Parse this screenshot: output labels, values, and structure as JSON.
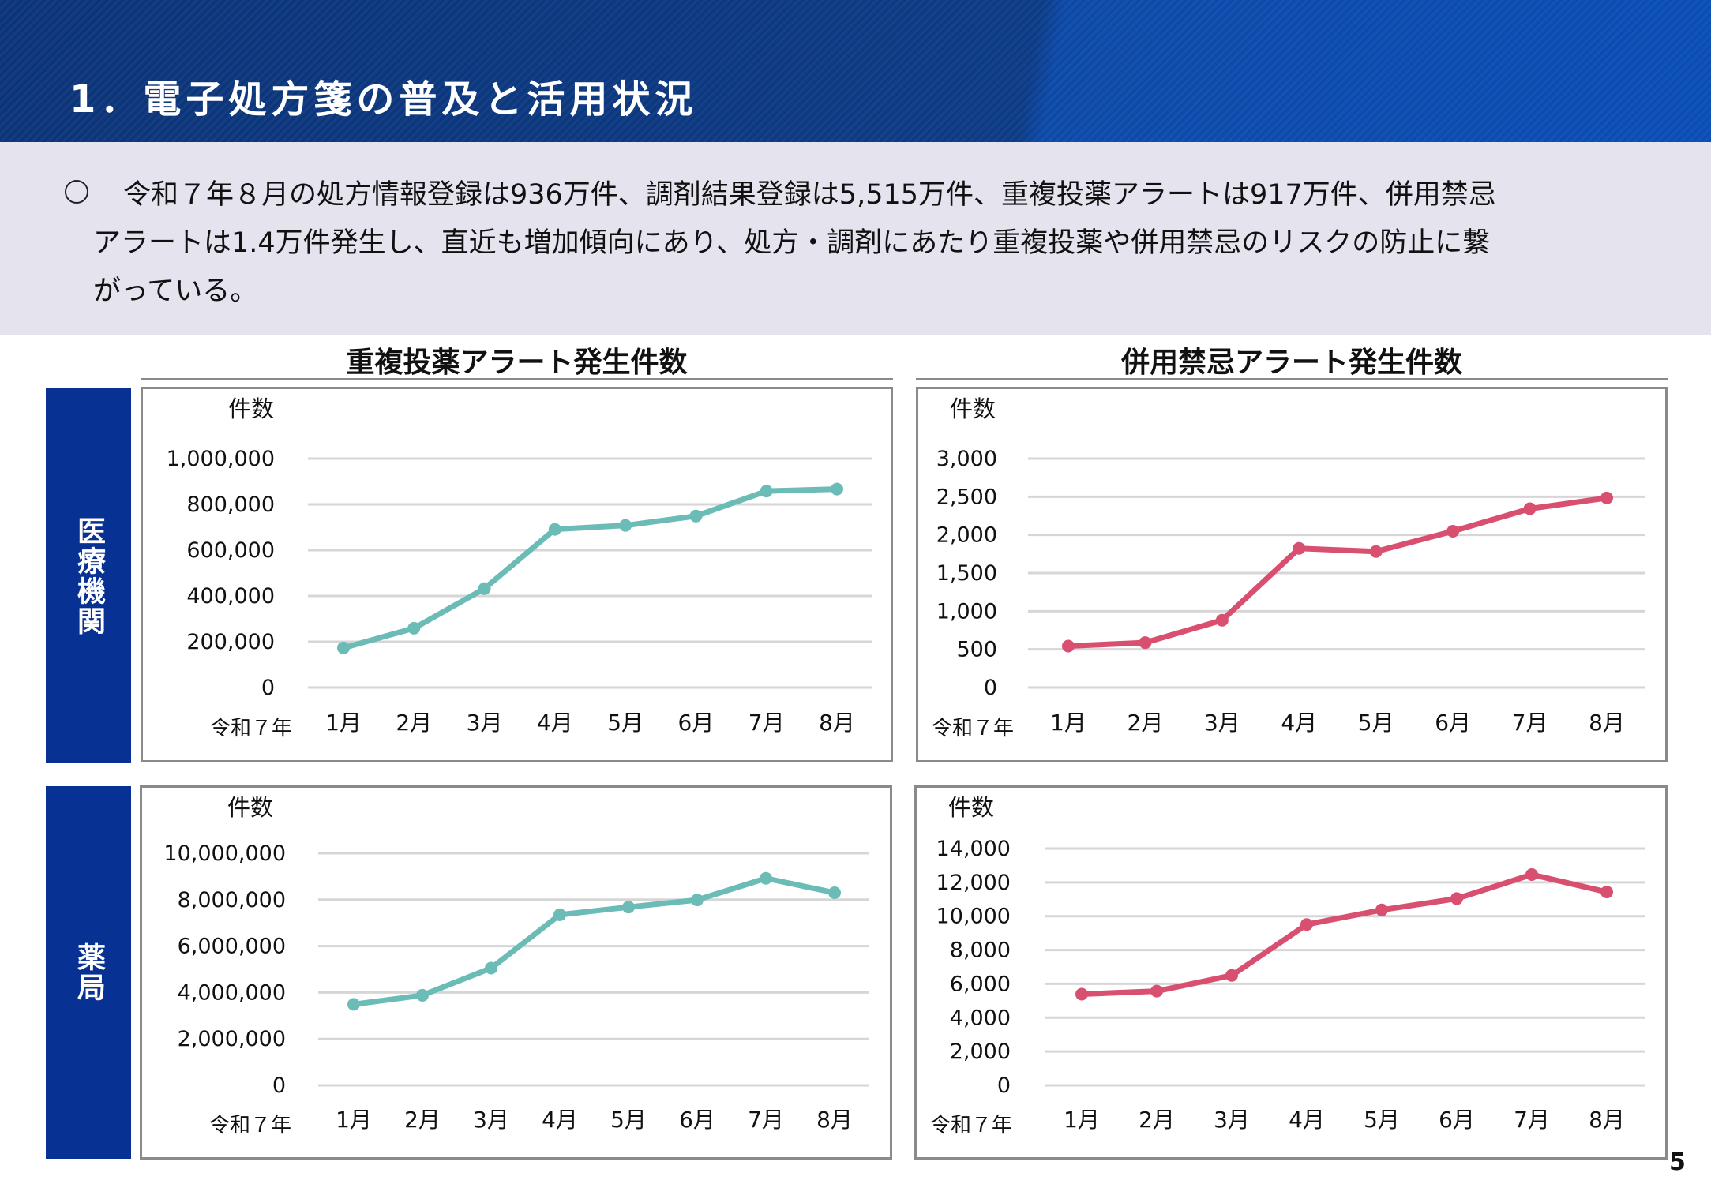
{
  "header": {
    "title": "1．電子処方箋の普及と活用状況"
  },
  "summary": {
    "bullet_icon": "circle-bullet",
    "lines": [
      "令和７年８月の処方情報登録は936万件、調剤結果登録は5,515万件、重複投薬アラートは917万件、併用禁忌",
      "アラートは1.4万件発生し、直近も増加傾向にあり、処方・調剤にあたり重複投薬や併用禁忌のリスクの防止に繋",
      "がっている。"
    ]
  },
  "columns": {
    "left_title": "重複投薬アラート発生件数",
    "right_title": "併用禁忌アラート発生件数"
  },
  "rows": {
    "top_label": "医療機関",
    "bottom_label": "薬局"
  },
  "page_number": "5",
  "colors": {
    "teal": "#6bbcb7",
    "pink": "#d94f70",
    "side_label": "#073192"
  },
  "chart_data": [
    {
      "type": "line",
      "title": "重複投薬アラート発生件数",
      "row": "医療機関",
      "ylabel": "件数",
      "xlabel": "令和７年",
      "categories": [
        "1月",
        "2月",
        "3月",
        "4月",
        "5月",
        "6月",
        "7月",
        "8月"
      ],
      "values": [
        173000,
        259000,
        432000,
        691000,
        708000,
        749000,
        858000,
        867000
      ],
      "ylim": [
        0,
        1000000
      ],
      "yticks": [
        "0",
        "200,000",
        "400,000",
        "600,000",
        "800,000",
        "1,000,000"
      ],
      "color": "#6bbcb7",
      "grid": true
    },
    {
      "type": "line",
      "title": "併用禁忌アラート発生件数",
      "row": "医療機関",
      "ylabel": "件数",
      "xlabel": "令和７年",
      "categories": [
        "1月",
        "2月",
        "3月",
        "4月",
        "5月",
        "6月",
        "7月",
        "8月"
      ],
      "values": [
        543,
        588,
        882,
        1823,
        1782,
        2048,
        2343,
        2484
      ],
      "ylim": [
        0,
        3000
      ],
      "yticks": [
        "0",
        "500",
        "1,000",
        "1,500",
        "2,000",
        "2,500",
        "3,000"
      ],
      "color": "#d94f70",
      "grid": true
    },
    {
      "type": "line",
      "title": "重複投薬アラート発生件数",
      "row": "薬局",
      "ylabel": "件数",
      "xlabel": "令和７年",
      "categories": [
        "1月",
        "2月",
        "3月",
        "4月",
        "5月",
        "6月",
        "7月",
        "8月"
      ],
      "values": [
        3490000,
        3880000,
        5050000,
        7350000,
        7680000,
        7990000,
        8920000,
        8300000
      ],
      "ylim": [
        0,
        10000000
      ],
      "yticks": [
        "0",
        "2,000,000",
        "4,000,000",
        "6,000,000",
        "8,000,000",
        "10,000,000"
      ],
      "color": "#6bbcb7",
      "grid": true
    },
    {
      "type": "line",
      "title": "併用禁忌アラート発生件数",
      "row": "薬局",
      "ylabel": "件数",
      "xlabel": "令和７年",
      "categories": [
        "1月",
        "2月",
        "3月",
        "4月",
        "5月",
        "6月",
        "7月",
        "8月"
      ],
      "values": [
        5390,
        5570,
        6500,
        9510,
        10370,
        11040,
        12460,
        11430
      ],
      "ylim": [
        0,
        14000
      ],
      "yticks": [
        "0",
        "2,000",
        "4,000",
        "6,000",
        "8,000",
        "10,000",
        "12,000",
        "14,000"
      ],
      "color": "#d94f70",
      "grid": true
    }
  ]
}
